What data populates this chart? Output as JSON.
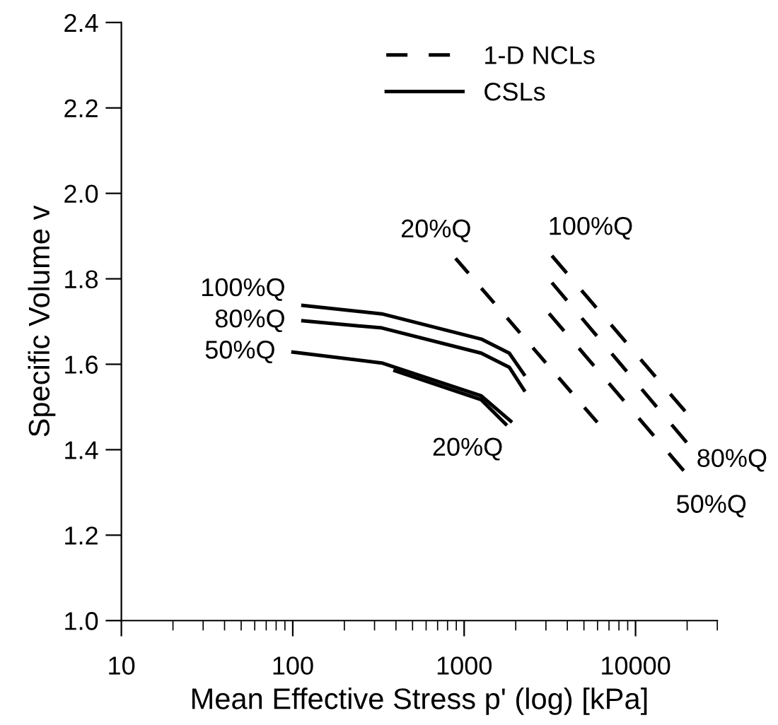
{
  "chart_data": {
    "type": "line",
    "xlabel": "Mean Effective Stress p' (log) [kPa]",
    "ylabel": "Specific Volume v",
    "log": "x",
    "xlim": [
      10,
      30000
    ],
    "ylim": [
      1.0,
      2.4
    ],
    "xticks": [
      10,
      {
        "value": 20,
        "label": null
      },
      {
        "value": 30,
        "label": null
      },
      {
        "value": 40,
        "label": null
      },
      {
        "value": 50,
        "label": null
      },
      {
        "value": 60,
        "label": null
      },
      {
        "value": 70,
        "label": null
      },
      {
        "value": 80,
        "label": null
      },
      {
        "value": 90,
        "label": null
      },
      100,
      {
        "value": 200,
        "label": null
      },
      {
        "value": 300,
        "label": null
      },
      {
        "value": 400,
        "label": null
      },
      {
        "value": 500,
        "label": null
      },
      {
        "value": 600,
        "label": null
      },
      {
        "value": 700,
        "label": null
      },
      {
        "value": 800,
        "label": null
      },
      {
        "value": 900,
        "label": null
      },
      1000,
      {
        "value": 2000,
        "label": null
      },
      {
        "value": 3000,
        "label": null
      },
      {
        "value": 4000,
        "label": null
      },
      {
        "value": 5000,
        "label": null
      },
      {
        "value": 6000,
        "label": null
      },
      {
        "value": 7000,
        "label": null
      },
      {
        "value": 8000,
        "label": null
      },
      {
        "value": 9000,
        "label": null
      },
      10000,
      {
        "value": 20000,
        "label": null
      },
      {
        "value": 30000,
        "label": null
      }
    ],
    "yticks": [
      {
        "value": 1.0,
        "label": "1.0"
      },
      {
        "value": 1.2,
        "label": "1.2"
      },
      {
        "value": 1.4,
        "label": "1.4"
      },
      {
        "value": 1.6,
        "label": "1.6"
      },
      {
        "value": 1.8,
        "label": "1.8"
      },
      {
        "value": 2.0,
        "label": "2.0"
      },
      {
        "value": 2.2,
        "label": "2.2"
      },
      {
        "value": 2.4,
        "label": "2.4"
      }
    ],
    "grid": false,
    "legend": "top",
    "marker": "none",
    "annotations": [
      {
        "text": "100%Q",
        "x": 112,
        "y": 1.738
      },
      {
        "text": "80%Q",
        "x": 112,
        "y": 1.702
      },
      {
        "text": "50%Q",
        "x": 98,
        "y": 1.629
      },
      {
        "text": "20%Q",
        "x": 1778,
        "y": 1.457
      },
      {
        "text": "20%Q",
        "x": 891,
        "y": 1.848
      },
      {
        "text": "100%Q",
        "x": 3250,
        "y": 1.854
      },
      {
        "text": "80%Q",
        "x": 19870,
        "y": 1.417
      },
      {
        "text": "50%Q",
        "x": 19100,
        "y": 1.351
      }
    ],
    "series": [
      {
        "name": "1-D NCLs",
        "color": "#000000",
        "line_style": "dashed",
        "x": [
          891,
          5980,
          null,
          3250,
          19450,
          null,
          3250,
          19870,
          null,
          3130,
          19100
        ],
        "values": [
          1.848,
          1.464,
          null,
          1.854,
          1.49,
          null,
          1.791,
          1.417,
          null,
          1.719,
          1.351
        ]
      },
      {
        "name": "CSLs",
        "color": "#000000",
        "line_style": "solid",
        "x": [
          112,
          331,
          1257,
          1833,
          2265,
          null,
          112,
          331,
          1257,
          1833,
          2265,
          null,
          98,
          331,
          1257,
          1904,
          null,
          386,
          1257,
          1778
        ],
        "values": [
          1.738,
          1.718,
          1.659,
          1.626,
          1.573,
          null,
          1.702,
          1.685,
          1.626,
          1.593,
          1.536,
          null,
          1.629,
          1.603,
          1.526,
          1.464,
          null,
          1.586,
          1.517,
          1.457
        ]
      }
    ]
  }
}
